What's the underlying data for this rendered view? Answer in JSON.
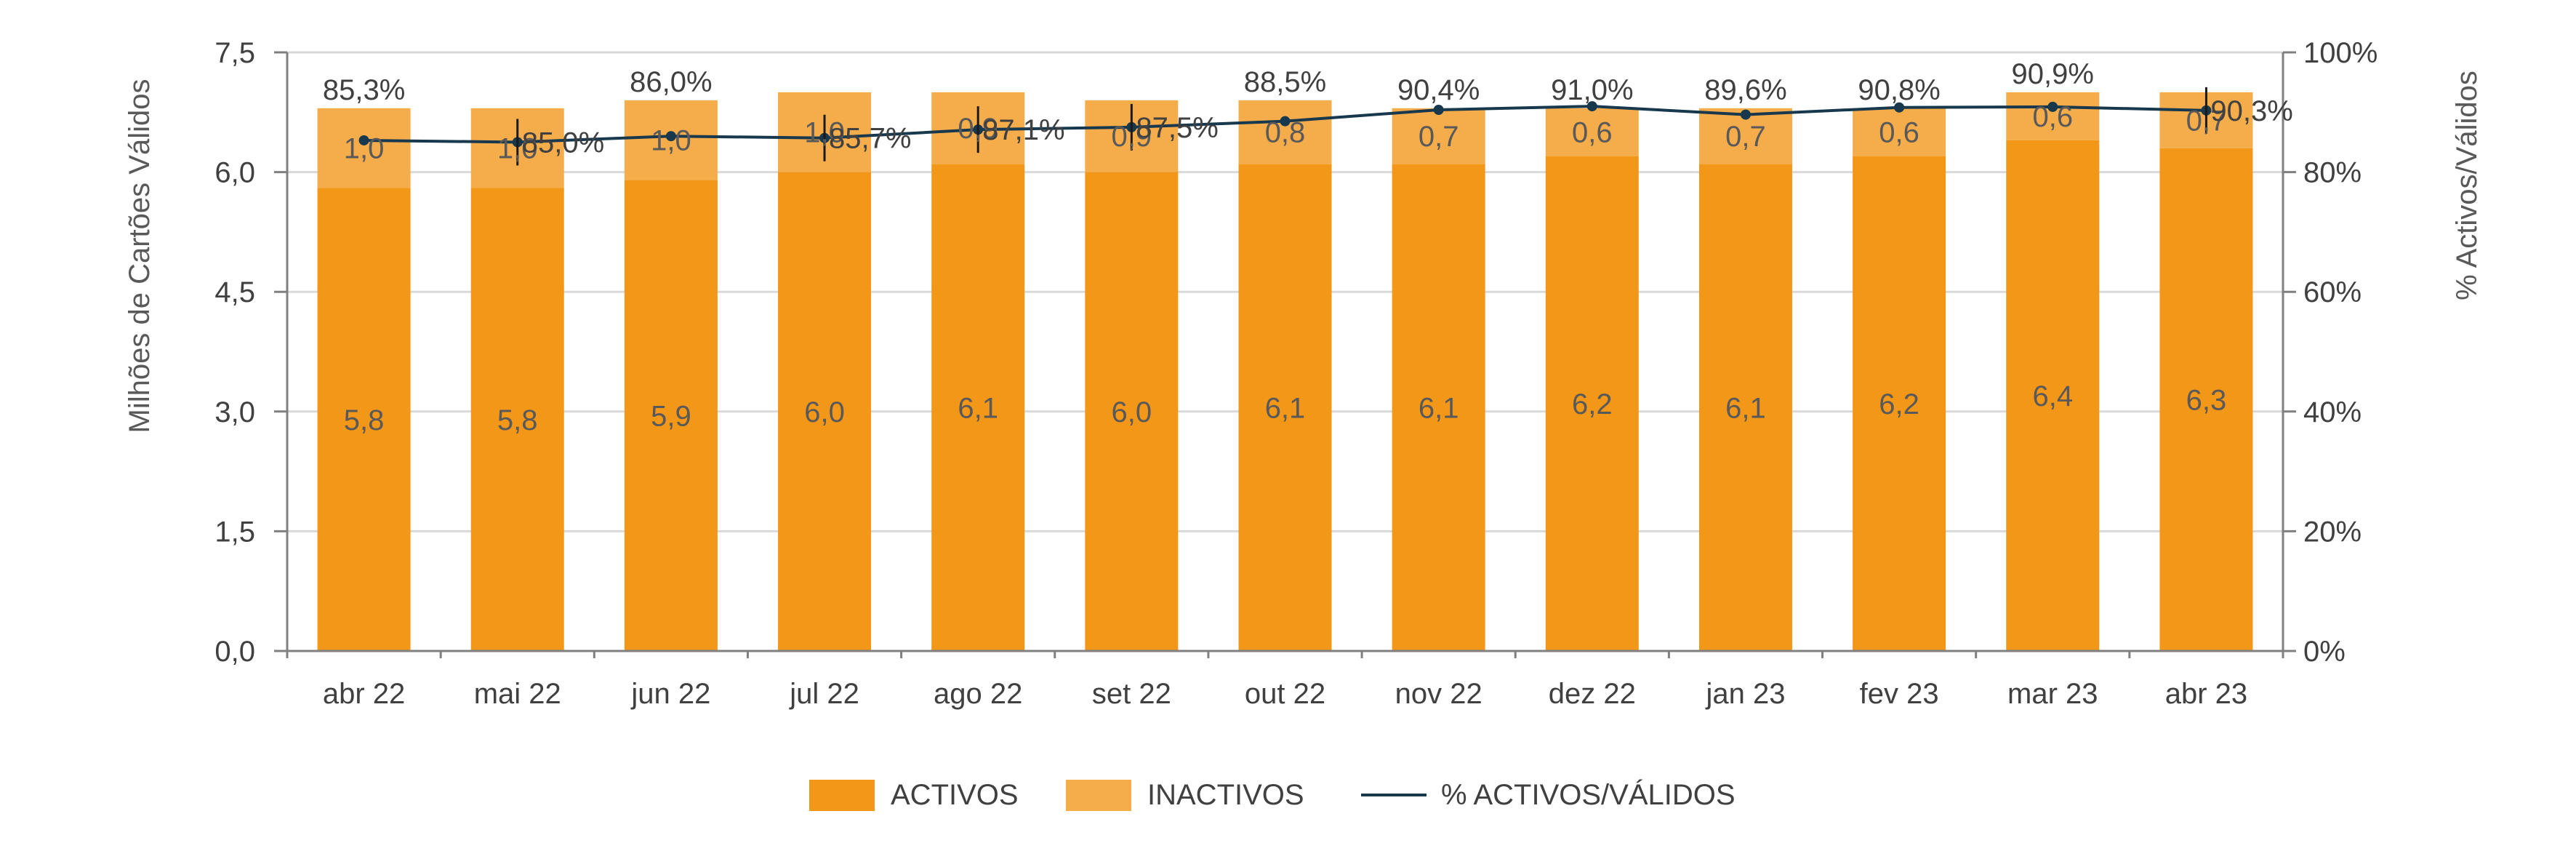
{
  "chart_data": {
    "type": "bar",
    "stacked": true,
    "categories": [
      "abr 22",
      "mai 22",
      "jun 22",
      "jul 22",
      "ago 22",
      "set 22",
      "out 22",
      "nov 22",
      "dez 22",
      "jan 23",
      "fev 23",
      "mar 23",
      "abr 23"
    ],
    "series": [
      {
        "name": "ACTIVOS",
        "axis": "left",
        "color": "#F39718",
        "values": [
          5.8,
          5.8,
          5.9,
          6.0,
          6.1,
          6.0,
          6.1,
          6.1,
          6.2,
          6.1,
          6.2,
          6.4,
          6.3
        ],
        "labels": [
          "5,8",
          "5,8",
          "5,9",
          "6,0",
          "6,1",
          "6,0",
          "6,1",
          "6,1",
          "6,2",
          "6,1",
          "6,2",
          "6,4",
          "6,3"
        ]
      },
      {
        "name": "INACTIVOS",
        "axis": "left",
        "color": "#F5AC4A",
        "values": [
          1.0,
          1.0,
          1.0,
          1.0,
          0.9,
          0.9,
          0.8,
          0.7,
          0.6,
          0.7,
          0.6,
          0.6,
          0.7
        ],
        "labels": [
          "1,0",
          "1,0",
          "1,0",
          "1,0",
          "0,9",
          "0,9",
          "0,8",
          "0,7",
          "0,6",
          "0,7",
          "0,6",
          "0,6",
          "0,7"
        ]
      },
      {
        "name": "% ACTIVOS/VÁLIDOS",
        "type": "line",
        "axis": "right",
        "color": "#17384D",
        "values": [
          85.3,
          85.0,
          86.0,
          85.7,
          87.1,
          87.5,
          88.5,
          90.4,
          91.0,
          89.6,
          90.8,
          90.9,
          90.3
        ],
        "labels": [
          "85,3%",
          "85,0%",
          "86,0%",
          "85,7%",
          "87,1%",
          "87,5%",
          "88,5%",
          "90,4%",
          "91,0%",
          "89,6%",
          "90,8%",
          "90,9%",
          "90,3%"
        ]
      }
    ],
    "ylabel": "Milhões de Cartões Válidos",
    "ylabel_right": "% Activos/Válidos",
    "ylim": [
      0,
      7.5
    ],
    "yticks": [
      "0,0",
      "1,5",
      "3,0",
      "4,5",
      "6,0",
      "7,5"
    ],
    "ylim_right": [
      0,
      100
    ],
    "yticks_right": [
      "0%",
      "20%",
      "40%",
      "60%",
      "80%",
      "100%"
    ],
    "grid": true,
    "legend": "bottom"
  }
}
